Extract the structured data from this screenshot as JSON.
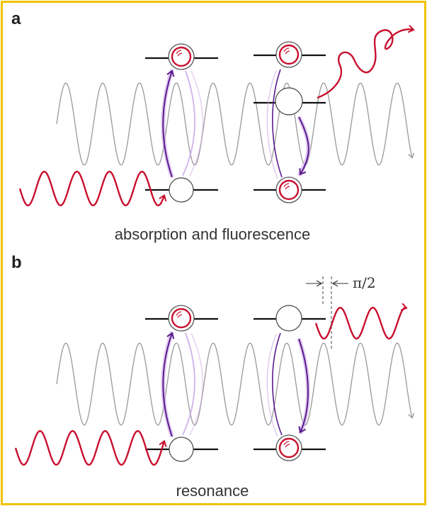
{
  "panels": {
    "a": {
      "letter": "a",
      "caption": "absorption and fluorescence"
    },
    "b": {
      "letter": "b",
      "caption": "resonance",
      "phase_label": "π/2"
    }
  },
  "colors": {
    "frame": "#F2C200",
    "field_wave": "#9a9a9a",
    "photon": "#C8102E",
    "transition_arrow": "#5B1A8E",
    "transition_glow": "#C9A6E8",
    "level": "#111111"
  }
}
